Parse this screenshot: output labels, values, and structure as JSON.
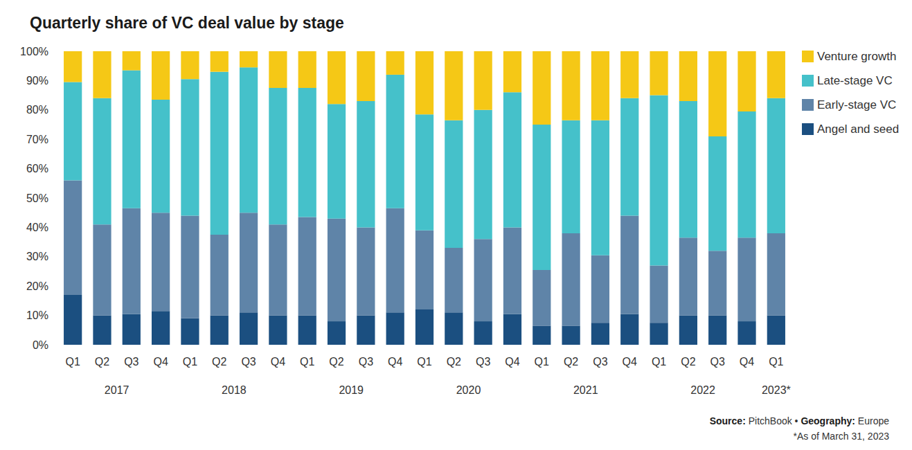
{
  "chart_data": {
    "type": "bar",
    "title": "Quarterly share of VC deal value by stage",
    "categories": [
      "Q1",
      "Q2",
      "Q3",
      "Q4",
      "Q1",
      "Q2",
      "Q3",
      "Q4",
      "Q1",
      "Q2",
      "Q3",
      "Q4",
      "Q1",
      "Q2",
      "Q3",
      "Q4",
      "Q1",
      "Q2",
      "Q3",
      "Q4",
      "Q1",
      "Q2",
      "Q3",
      "Q4",
      "Q1"
    ],
    "category_groups": [
      {
        "label": "2017",
        "count": 4
      },
      {
        "label": "2018",
        "count": 4
      },
      {
        "label": "2019",
        "count": 4
      },
      {
        "label": "2020",
        "count": 4
      },
      {
        "label": "2021",
        "count": 4
      },
      {
        "label": "2022",
        "count": 4
      },
      {
        "label": "2023*",
        "count": 1
      }
    ],
    "series": [
      {
        "name": "Angel and seed",
        "color": "#1b4f80",
        "values": [
          17,
          10,
          10.5,
          11.5,
          9,
          10,
          11,
          10,
          10,
          8,
          10,
          11,
          12,
          11,
          8,
          10.5,
          6.5,
          6.5,
          7.5,
          10.5,
          7.5,
          10,
          10,
          8,
          10
        ]
      },
      {
        "name": "Early-stage VC",
        "color": "#5f84a8",
        "values": [
          39,
          31,
          36,
          33.5,
          35,
          27.5,
          34,
          31,
          33.5,
          35,
          30,
          35.5,
          27,
          22,
          28,
          29.5,
          19,
          31.5,
          23,
          33.5,
          19.5,
          26.5,
          22,
          28.5,
          28
        ]
      },
      {
        "name": "Late-stage VC",
        "color": "#45c1ca",
        "values": [
          33.5,
          43,
          47,
          38.5,
          46.5,
          55.5,
          49.5,
          46.5,
          44,
          39,
          43,
          45.5,
          39.5,
          43.5,
          44,
          46,
          49.5,
          38.5,
          46,
          40,
          58,
          46.5,
          39,
          43,
          46
        ]
      },
      {
        "name": "Venture growth",
        "color": "#f5c816",
        "values": [
          10.5,
          16,
          6.5,
          16.5,
          9.5,
          7,
          5.5,
          12.5,
          12.5,
          18,
          17,
          8,
          21.5,
          23.5,
          20,
          14,
          25,
          23.5,
          23.5,
          16,
          15,
          17,
          29,
          20.5,
          16
        ]
      }
    ],
    "ylim": [
      0,
      100
    ],
    "yticks": [
      {
        "value": 0,
        "label": "0%"
      },
      {
        "value": 10,
        "label": "10%"
      },
      {
        "value": 20,
        "label": "20%"
      },
      {
        "value": 30,
        "label": "30%"
      },
      {
        "value": 40,
        "label": "40%"
      },
      {
        "value": 50,
        "label": "50%"
      },
      {
        "value": 60,
        "label": "60%"
      },
      {
        "value": 70,
        "label": "70%"
      },
      {
        "value": 80,
        "label": "80%"
      },
      {
        "value": 90,
        "label": "90%"
      },
      {
        "value": 100,
        "label": "100%"
      }
    ],
    "stacked": true,
    "grid": false,
    "legend": "right",
    "footer": [
      {
        "label": "Source:",
        "text": "PitchBook"
      },
      {
        "label": "Geography:",
        "text": "Europe"
      }
    ],
    "footer_separator": "•",
    "footnote": "*As of March 31, 2023"
  }
}
